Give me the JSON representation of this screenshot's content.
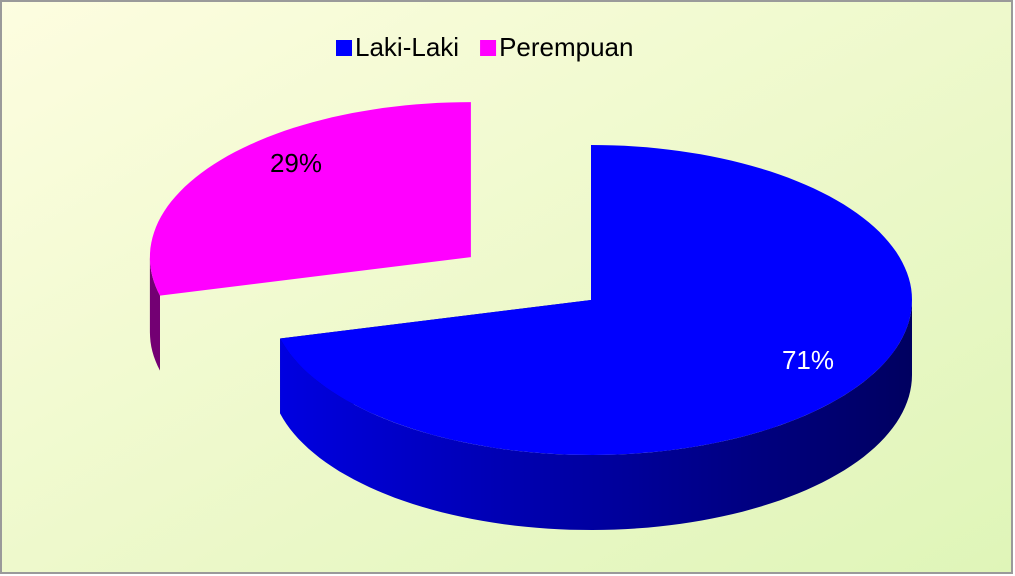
{
  "chart_data": {
    "type": "pie",
    "categories": [
      "Laki-Laki",
      "Perempuan"
    ],
    "values": [
      71,
      29
    ],
    "value_labels": [
      "71%",
      "29%"
    ],
    "colors": [
      "#0000ff",
      "#ff00ff"
    ],
    "legend": "top"
  }
}
